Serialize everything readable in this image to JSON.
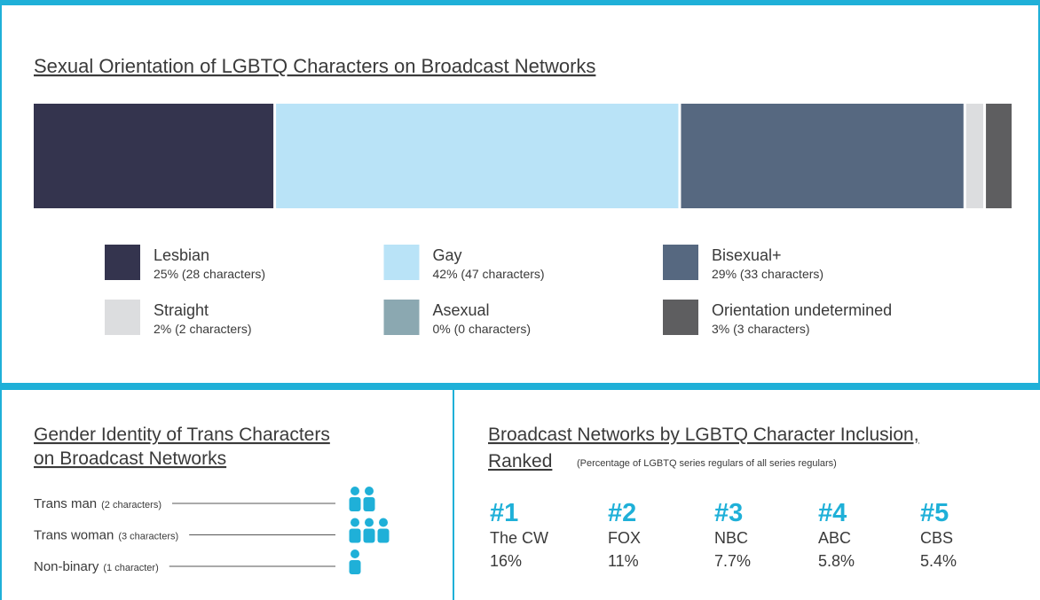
{
  "orientation": {
    "title": "Sexual Orientation of LGBTQ Characters on Broadcast Networks",
    "items": [
      {
        "name": "Lesbian",
        "detail": "25% (28 characters)",
        "characters": 28,
        "color": "#34344e"
      },
      {
        "name": "Gay",
        "detail": "42% (47 characters)",
        "characters": 47,
        "color": "#b9e3f7"
      },
      {
        "name": "Bisexual+",
        "detail": "29% (33 characters)",
        "characters": 33,
        "color": "#566880"
      },
      {
        "name": "Straight",
        "detail": "2% (2 characters)",
        "characters": 2,
        "color": "#dcdddf"
      },
      {
        "name": "Asexual",
        "detail": "0% (0 characters)",
        "characters": 0,
        "color": "#8ba8b1"
      },
      {
        "name": "Orientation undetermined",
        "detail": "3% (3 characters)",
        "characters": 3,
        "color": "#5e5e60"
      }
    ]
  },
  "gender_identity": {
    "title_lines": [
      "Gender Identity of Trans Characters",
      "on Broadcast Networks"
    ],
    "icon_color": "#1fb0d8",
    "rows": [
      {
        "name": "Trans man",
        "detail": "(2 characters)",
        "characters": 2
      },
      {
        "name": "Trans woman",
        "detail": "(3 characters)",
        "characters": 3
      },
      {
        "name": "Non-binary",
        "detail": "(1 character)",
        "characters": 1
      }
    ]
  },
  "networks": {
    "title_lines": [
      "Broadcast Networks by LGBTQ Character Inclusion,",
      "Ranked"
    ],
    "note": "(Percentage of LGBTQ series regulars of all series regulars)",
    "ranks": [
      {
        "rank": "#1",
        "name": "The CW",
        "share": "16%"
      },
      {
        "rank": "#2",
        "name": "FOX",
        "share": "11%"
      },
      {
        "rank": "#3",
        "name": "NBC",
        "share": "7.7%"
      },
      {
        "rank": "#4",
        "name": "ABC",
        "share": "5.8%"
      },
      {
        "rank": "#5",
        "name": "CBS",
        "share": "5.4%"
      }
    ]
  }
}
